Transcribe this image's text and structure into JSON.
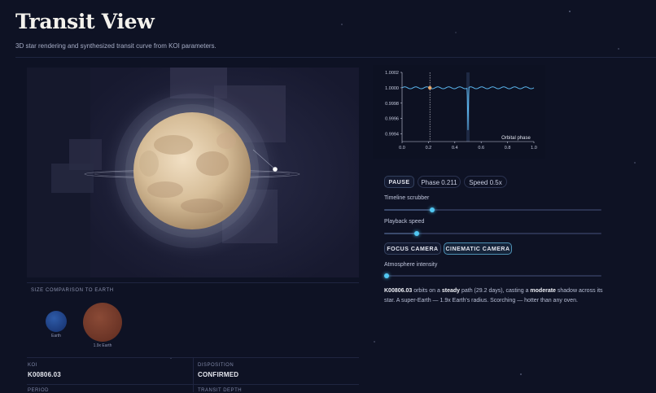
{
  "header": {
    "title": "Transit View",
    "subtitle": "3D star rendering and synthesized transit curve from KOI parameters."
  },
  "size_comparison": {
    "heading": "SIZE COMPARISON TO EARTH",
    "earth_label": "Earth",
    "planet_label": "1.9x Earth",
    "planet_radius_ratio": 1.9
  },
  "facts": {
    "koi_label": "KOI",
    "koi_value": "K00806.03",
    "disposition_label": "DISPOSITION",
    "disposition_value": "CONFIRMED",
    "period_label": "PERIOD",
    "transit_depth_label": "TRANSIT DEPTH"
  },
  "chart_data": {
    "type": "line",
    "xlabel": "Orbital phase",
    "ylabel": "",
    "xlim": [
      0.0,
      1.0
    ],
    "ylim": [
      0.9993,
      1.0002
    ],
    "xticks": [
      "0.0",
      "0.2",
      "0.4",
      "0.6",
      "0.8",
      "1.0"
    ],
    "yticks": [
      "1.0002",
      "1.0000",
      "0.9998",
      "0.9996",
      "0.9994"
    ],
    "baseline": 1.0,
    "transit_center": 0.5,
    "transit_depth_min": 0.99945,
    "current_phase": 0.211,
    "grid": false
  },
  "controls": {
    "pause_label": "PAUSE",
    "phase_chip": "Phase 0.211",
    "speed_chip": "Speed 0.5x",
    "timeline_label": "Timeline scrubber",
    "timeline_value": 0.22,
    "playback_label": "Playback speed",
    "playback_value": 0.15,
    "focus_camera_label": "FOCUS CAMERA",
    "cinematic_camera_label": "CINEMATIC CAMERA",
    "atmosphere_label": "Atmosphere intensity",
    "atmosphere_value": 0.01
  },
  "description": {
    "koi": "K00806.03",
    "t1": " orbits on a ",
    "orbit": "steady",
    "t2": " path (29.2 days), casting a ",
    "shadow": "moderate",
    "t3": " shadow across its star. A super-Earth — 1.9x Earth's radius. Scorching — hotter than any oven."
  },
  "colors": {
    "background": "#0e1224",
    "accent": "#51c8f2",
    "star": "#d8c3a2",
    "curve": "#5bb6ee",
    "marker": "#e8a86a"
  }
}
